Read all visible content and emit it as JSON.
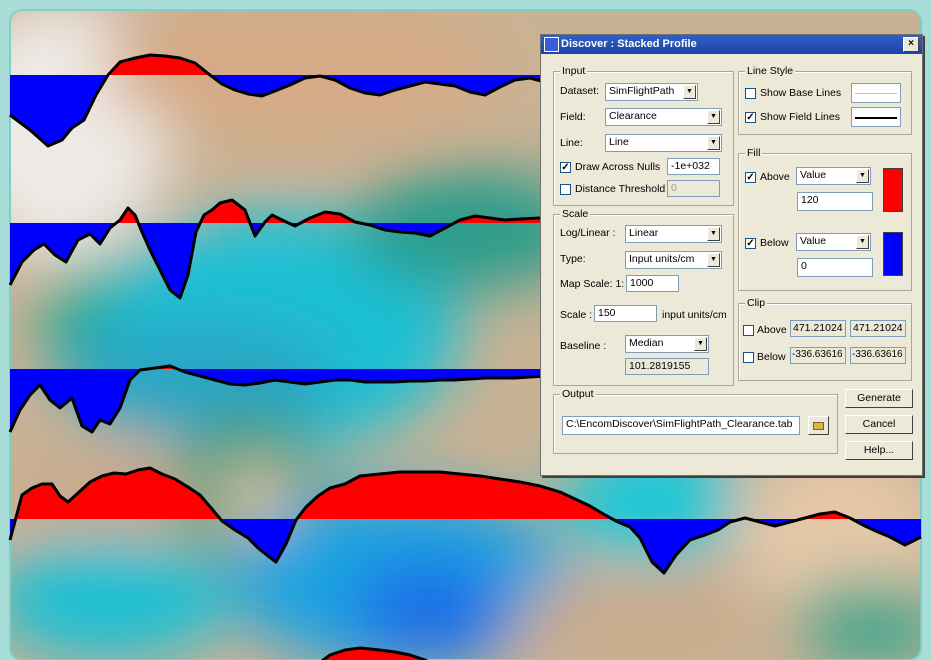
{
  "colors": {
    "fill_above": "#ff0000",
    "fill_below": "#0000ff"
  },
  "dialog": {
    "title": "Discover : Stacked Profile",
    "close_label": "×",
    "input": {
      "group_label": "Input",
      "dataset_label": "Dataset:",
      "dataset_value": "SimFlightPath",
      "field_label": "Field:",
      "field_value": "Clearance",
      "line_label": "Line:",
      "line_value": "Line",
      "draw_across_nulls_label": "Draw Across Nulls",
      "draw_across_nulls_checked": true,
      "nulls_value": "-1e+032",
      "distance_threshold_label": "Distance Threshold",
      "distance_threshold_checked": false,
      "distance_threshold_value": "0"
    },
    "scale": {
      "group_label": "Scale",
      "log_linear_label": "Log/Linear :",
      "log_linear_value": "Linear",
      "type_label": "Type:",
      "type_value": "Input units/cm",
      "map_scale_label": "Map Scale:  1:",
      "map_scale_value": "1000",
      "scale_label": "Scale :",
      "scale_value": "150",
      "scale_units": "input units/cm",
      "baseline_label": "Baseline :",
      "baseline_value": "Median",
      "baseline_readout": "101.2819155"
    },
    "line_style": {
      "group_label": "Line Style",
      "show_base_lines_label": "Show Base Lines",
      "show_base_lines_checked": false,
      "show_field_lines_label": "Show Field Lines",
      "show_field_lines_checked": true
    },
    "fill": {
      "group_label": "Fill",
      "above_label": "Above",
      "above_checked": true,
      "above_mode": "Value",
      "above_value": "120",
      "below_label": "Below",
      "below_checked": true,
      "below_mode": "Value",
      "below_value": "0"
    },
    "clip": {
      "group_label": "Clip",
      "above_label": "Above",
      "above_checked": false,
      "above_value_1": "471.21024",
      "above_value_2": "471.21024",
      "below_label": "Below",
      "below_checked": false,
      "below_value_1": "-336.63616",
      "below_value_2": "-336.63616"
    },
    "output": {
      "group_label": "Output",
      "path": "C:\\EncomDiscover\\SimFlightPath_Clearance.tab"
    },
    "buttons": {
      "generate": "Generate",
      "cancel": "Cancel",
      "help": "Help..."
    }
  }
}
